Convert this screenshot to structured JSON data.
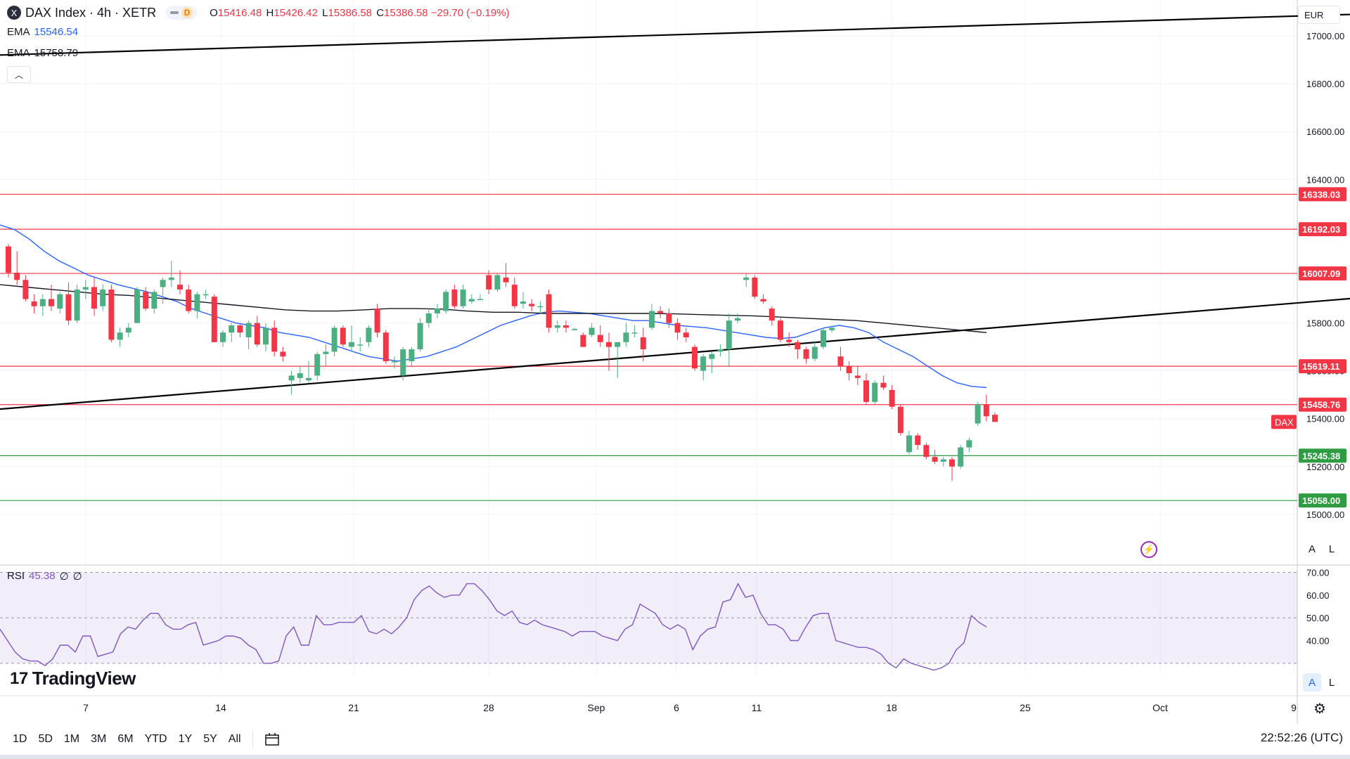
{
  "header": {
    "symbol_badge": "X",
    "title": "DAX Index · 4h · XETR",
    "toggle_letter": "D",
    "ohlc": [
      {
        "k": "O",
        "v": "15416.48"
      },
      {
        "k": "H",
        "v": "15426.42"
      },
      {
        "k": "L",
        "v": "15386.58"
      },
      {
        "k": "C",
        "v": "15386.58"
      },
      {
        "k": "",
        "v": "−29.70 (−0.19%)"
      }
    ]
  },
  "indicators": [
    {
      "label": "EMA",
      "value": "15546.54",
      "color": "#2962ff"
    },
    {
      "label": "EMA",
      "value": "15758.79",
      "color": "#131722"
    }
  ],
  "collapse_icon": "chevron-up-icon",
  "rsi": {
    "label": "RSI",
    "value": "45.38",
    "extra1": "∅",
    "extra2": "∅"
  },
  "logo": {
    "mark": "17",
    "text": "TradingView"
  },
  "currency": "EUR",
  "scale_buttons": {
    "auto": "A",
    "log": "L"
  },
  "instrument_tag": "DAX",
  "time_ranges": [
    "1D",
    "5D",
    "1M",
    "3M",
    "6M",
    "YTD",
    "1Y",
    "5Y",
    "All"
  ],
  "clock": "22:52:26 (UTC)",
  "colors": {
    "up": "#26a69a",
    "up_fill": "#4caf82",
    "down": "#f23645",
    "ema_fast": "#2962ff",
    "ema_slow": "#131722",
    "rsi": "#7e57c2",
    "support": "#2e9c41",
    "resistance": "#f23645"
  },
  "chart_data": [
    {
      "type": "candlestick",
      "y_axis_ticks": [
        15000,
        15200,
        15400,
        15600,
        15800,
        16000,
        16200,
        16400,
        16600,
        16800,
        17000
      ],
      "y_axis_tick_labels": [
        "15000.00",
        "15200.00",
        "15400.00",
        "15600.00",
        "15800.00",
        "16000.00",
        "16200.00",
        "16400.00",
        "16600.00",
        "16800.00",
        "17000.00"
      ],
      "ylim": [
        14800,
        17150
      ],
      "x_axis_labels": [
        "7",
        "14",
        "21",
        "28",
        "Sep",
        "6",
        "11",
        "18",
        "25",
        "Oct",
        "9"
      ],
      "horizontal_levels": [
        {
          "value": 16338.03,
          "label": "16338.03",
          "kind": "resistance"
        },
        {
          "value": 16192.03,
          "label": "16192.03",
          "kind": "resistance"
        },
        {
          "value": 16007.09,
          "label": "16007.09",
          "kind": "resistance"
        },
        {
          "value": 15619.11,
          "label": "15619.11",
          "kind": "resistance"
        },
        {
          "value": 15458.76,
          "label": "15458.76",
          "kind": "resistance"
        },
        {
          "value": 15245.38,
          "label": "15245.38",
          "kind": "support"
        },
        {
          "value": 15058.0,
          "label": "15058.00",
          "kind": "support"
        }
      ],
      "trendlines": [
        {
          "name": "upper-channel",
          "from": [
            0,
            16920
          ],
          "to": [
            166,
            17100
          ]
        },
        {
          "name": "lower-channel",
          "from": [
            0,
            15440
          ],
          "to": [
            166,
            15930
          ]
        }
      ],
      "candles": [
        [
          16120,
          16130,
          15990,
          16010
        ],
        [
          16010,
          16100,
          15960,
          15980
        ],
        [
          15980,
          16000,
          15890,
          15900
        ],
        [
          15890,
          15920,
          15840,
          15870
        ],
        [
          15870,
          15920,
          15830,
          15900
        ],
        [
          15900,
          15960,
          15850,
          15870
        ],
        [
          15860,
          15930,
          15840,
          15920
        ],
        [
          15920,
          15970,
          15790,
          15810
        ],
        [
          15810,
          15960,
          15800,
          15940
        ],
        [
          15940,
          15980,
          15900,
          15950
        ],
        [
          15950,
          15990,
          15830,
          15860
        ],
        [
          15870,
          15960,
          15850,
          15940
        ],
        [
          15940,
          15960,
          15720,
          15730
        ],
        [
          15730,
          15780,
          15700,
          15760
        ],
        [
          15760,
          15800,
          15740,
          15780
        ],
        [
          15800,
          15950,
          15800,
          15940
        ],
        [
          15930,
          15950,
          15850,
          15860
        ],
        [
          15860,
          15940,
          15840,
          15930
        ],
        [
          15950,
          15990,
          15880,
          15980
        ],
        [
          15980,
          16060,
          15950,
          15990
        ],
        [
          15960,
          16020,
          15920,
          15940
        ],
        [
          15940,
          15960,
          15840,
          15850
        ],
        [
          15850,
          15930,
          15820,
          15920
        ],
        [
          15920,
          15940,
          15900,
          15920
        ],
        [
          15910,
          15920,
          15720,
          15720
        ],
        [
          15720,
          15770,
          15700,
          15760
        ],
        [
          15760,
          15800,
          15720,
          15790
        ],
        [
          15790,
          15800,
          15740,
          15760
        ],
        [
          15740,
          15810,
          15690,
          15800
        ],
        [
          15800,
          15830,
          15700,
          15710
        ],
        [
          15710,
          15800,
          15680,
          15780
        ],
        [
          15780,
          15810,
          15660,
          15680
        ],
        [
          15680,
          15700,
          15640,
          15660
        ],
        [
          15560,
          15600,
          15500,
          15580
        ],
        [
          15570,
          15620,
          15550,
          15590
        ],
        [
          15560,
          15640,
          15550,
          15570
        ],
        [
          15580,
          15680,
          15560,
          15670
        ],
        [
          15670,
          15710,
          15620,
          15680
        ],
        [
          15680,
          15790,
          15660,
          15780
        ],
        [
          15780,
          15790,
          15700,
          15710
        ],
        [
          15700,
          15790,
          15680,
          15720
        ],
        [
          15710,
          15740,
          15680,
          15710
        ],
        [
          15720,
          15790,
          15700,
          15780
        ],
        [
          15860,
          15880,
          15740,
          15760
        ],
        [
          15760,
          15770,
          15630,
          15640
        ],
        [
          15640,
          15660,
          15610,
          15640
        ],
        [
          15580,
          15700,
          15560,
          15690
        ],
        [
          15640,
          15700,
          15620,
          15690
        ],
        [
          15690,
          15820,
          15680,
          15800
        ],
        [
          15800,
          15860,
          15780,
          15840
        ],
        [
          15840,
          15880,
          15820,
          15860
        ],
        [
          15850,
          15940,
          15840,
          15930
        ],
        [
          15940,
          15960,
          15860,
          15870
        ],
        [
          15870,
          15960,
          15860,
          15940
        ],
        [
          15890,
          15920,
          15880,
          15900
        ],
        [
          15900,
          15920,
          15900,
          15900
        ],
        [
          16000,
          16020,
          15920,
          15940
        ],
        [
          15940,
          16010,
          15930,
          16000
        ],
        [
          15990,
          16050,
          15950,
          15970
        ],
        [
          15960,
          15990,
          15860,
          15870
        ],
        [
          15880,
          15930,
          15860,
          15890
        ],
        [
          15880,
          15900,
          15850,
          15870
        ],
        [
          15870,
          15890,
          15840,
          15870
        ],
        [
          15920,
          15940,
          15760,
          15780
        ],
        [
          15780,
          15810,
          15760,
          15790
        ],
        [
          15790,
          15810,
          15760,
          15780
        ],
        [
          15770,
          15780,
          15770,
          15775
        ],
        [
          15750,
          15760,
          15700,
          15700
        ],
        [
          15750,
          15800,
          15740,
          15780
        ],
        [
          15750,
          15790,
          15700,
          15720
        ],
        [
          15720,
          15760,
          15600,
          15700
        ],
        [
          15700,
          15710,
          15570,
          15720
        ],
        [
          15720,
          15800,
          15700,
          15760
        ],
        [
          15760,
          15790,
          15740,
          15760
        ],
        [
          15740,
          15780,
          15640,
          15690
        ],
        [
          15780,
          15880,
          15770,
          15850
        ],
        [
          15850,
          15870,
          15820,
          15840
        ],
        [
          15840,
          15860,
          15780,
          15800
        ],
        [
          15800,
          15820,
          15730,
          15760
        ],
        [
          15760,
          15780,
          15720,
          15740
        ],
        [
          15700,
          15710,
          15600,
          15610
        ],
        [
          15600,
          15670,
          15560,
          15660
        ],
        [
          15650,
          15680,
          15590,
          15670
        ],
        [
          15680,
          15710,
          15660,
          15690
        ],
        [
          15690,
          15840,
          15620,
          15810
        ],
        [
          15810,
          15840,
          15800,
          15820
        ],
        [
          15980,
          16010,
          15950,
          15990
        ],
        [
          15990,
          16000,
          15900,
          15910
        ],
        [
          15900,
          15920,
          15880,
          15890
        ],
        [
          15860,
          15870,
          15790,
          15810
        ],
        [
          15810,
          15820,
          15720,
          15730
        ],
        [
          15730,
          15760,
          15700,
          15720
        ],
        [
          15720,
          15730,
          15650,
          15690
        ],
        [
          15690,
          15700,
          15630,
          15650
        ],
        [
          15650,
          15720,
          15640,
          15700
        ],
        [
          15700,
          15780,
          15690,
          15770
        ],
        [
          15770,
          15790,
          15760,
          15780
        ],
        [
          15660,
          15700,
          15600,
          15620
        ],
        [
          15620,
          15640,
          15560,
          15590
        ],
        [
          15580,
          15620,
          15540,
          15570
        ],
        [
          15560,
          15590,
          15460,
          15470
        ],
        [
          15470,
          15560,
          15460,
          15550
        ],
        [
          15550,
          15580,
          15520,
          15530
        ],
        [
          15520,
          15540,
          15440,
          15450
        ],
        [
          15450,
          15460,
          15330,
          15340
        ],
        [
          15260,
          15350,
          15250,
          15330
        ],
        [
          15330,
          15340,
          15270,
          15290
        ],
        [
          15290,
          15300,
          15230,
          15240
        ],
        [
          15240,
          15270,
          15210,
          15220
        ],
        [
          15220,
          15240,
          15200,
          15230
        ],
        [
          15230,
          15240,
          15140,
          15200
        ],
        [
          15200,
          15290,
          15190,
          15280
        ],
        [
          15280,
          15320,
          15260,
          15310
        ],
        [
          15380,
          15470,
          15370,
          15460
        ],
        [
          15460,
          15500,
          15390,
          15410
        ],
        [
          15416.48,
          15426.42,
          15386.58,
          15386.58
        ]
      ],
      "ema_fast_series": [
        16210,
        16190,
        16150,
        16100,
        16060,
        16030,
        16000,
        15980,
        15960,
        15945,
        15930,
        15910,
        15890,
        15860,
        15840,
        15820,
        15800,
        15790,
        15780,
        15760,
        15750,
        15740,
        15720,
        15700,
        15680,
        15660,
        15650,
        15640,
        15650,
        15660,
        15680,
        15700,
        15730,
        15760,
        15790,
        15810,
        15830,
        15845,
        15850,
        15845,
        15840,
        15830,
        15820,
        15810,
        15810,
        15800,
        15790,
        15785,
        15780,
        15770,
        15760,
        15750,
        15740,
        15735,
        15740,
        15760,
        15780,
        15790,
        15780,
        15760,
        15720,
        15690,
        15660,
        15620,
        15580,
        15550,
        15535,
        15530
      ],
      "ema_slow_series": [
        15960,
        15950,
        15940,
        15930,
        15920,
        15915,
        15905,
        15895,
        15885,
        15875,
        15865,
        15855,
        15850,
        15850,
        15855,
        15860,
        15860,
        15858,
        15850,
        15845,
        15845,
        15840,
        15840,
        15840,
        15840,
        15840,
        15838,
        15835,
        15832,
        15830,
        15825,
        15820,
        15815,
        15810,
        15800,
        15790,
        15780,
        15770,
        15760
      ],
      "type_secondary": "line",
      "rsi": {
        "y_axis_ticks": [
          40,
          50,
          60,
          70
        ],
        "y_axis_tick_labels": [
          "40.00",
          "50.00",
          "60.00",
          "70.00"
        ],
        "ylim": [
          25,
          72
        ],
        "upper_band": 70,
        "lower_band": 30,
        "middle": 50,
        "values": [
          45,
          40,
          35,
          32,
          31,
          31,
          29,
          32,
          38,
          38,
          35,
          42,
          42,
          33,
          34,
          35,
          43,
          46,
          45,
          49,
          52,
          52,
          47,
          45,
          45,
          47,
          48,
          38,
          39,
          40,
          42,
          42,
          41,
          38,
          36,
          30,
          30,
          31,
          42,
          46,
          38,
          38,
          51,
          47,
          47,
          48,
          48,
          48,
          51,
          44,
          43,
          45,
          43,
          46,
          50,
          58,
          62,
          64,
          61,
          59,
          60,
          60,
          65,
          65,
          62,
          58,
          53,
          51,
          53,
          48,
          47,
          49,
          47,
          46,
          45,
          44,
          42,
          44,
          44,
          44,
          42,
          41,
          40,
          45,
          47,
          56,
          54,
          52,
          47,
          45,
          47,
          45,
          36,
          42,
          45,
          46,
          57,
          58,
          65,
          59,
          60,
          52,
          47,
          47,
          45,
          40,
          40,
          46,
          51,
          52,
          52,
          40,
          39,
          38,
          37,
          37,
          36,
          34,
          30,
          28,
          32,
          30,
          29,
          28,
          27,
          28,
          30,
          36,
          39,
          51,
          48,
          46
        ]
      }
    }
  ]
}
